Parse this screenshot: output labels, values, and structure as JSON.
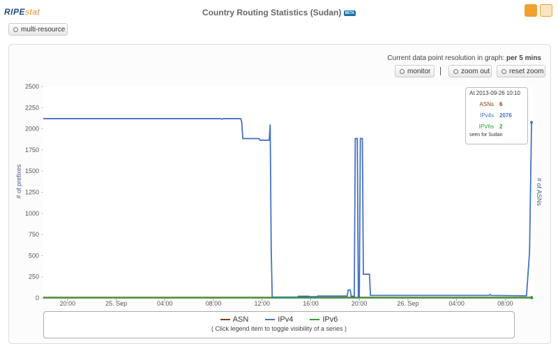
{
  "header": {
    "logo_main": "RIPE",
    "logo_sub": "stat",
    "title": "Country Routing Statistics (Sudan)",
    "badge": "BETA"
  },
  "toolbar": {
    "resource_button": "multi-resource",
    "resolution_text": "Current data point resolution in graph:",
    "resolution_value": "per 5 mins",
    "buttons": [
      "monitor",
      "zoom out",
      "reset zoom"
    ]
  },
  "chart_data": {
    "type": "line",
    "y_label": "# of prefixes",
    "y2_label": "# of ASNs",
    "xlim": [
      "2013-09-24 18:00",
      "2013-09-26 10:20"
    ],
    "xticks": [
      {
        "value": "2013-09-24 20:00",
        "label": "20:00"
      },
      {
        "value": "2013-09-25 00:00",
        "label": "25. Sep"
      },
      {
        "value": "2013-09-25 04:00",
        "label": "04:00"
      },
      {
        "value": "2013-09-25 08:00",
        "label": "08:00"
      },
      {
        "value": "2013-09-25 12:00",
        "label": "12:00"
      },
      {
        "value": "2013-09-25 16:00",
        "label": "16:00"
      },
      {
        "value": "2013-09-25 20:00",
        "label": "20:00"
      },
      {
        "value": "2013-09-26 00:00",
        "label": "26. Sep"
      },
      {
        "value": "2013-09-26 04:00",
        "label": "04:00"
      },
      {
        "value": "2013-09-26 08:00",
        "label": "08:00"
      }
    ],
    "ylim": [
      0,
      2500
    ],
    "yticks": [
      0,
      250,
      500,
      750,
      1000,
      1250,
      1500,
      1750,
      2000,
      2250,
      2500
    ],
    "grid": false,
    "series": [
      {
        "name": "ASN",
        "color": "#8b3a0f",
        "x": [
          "2013-09-24 18:00",
          "2013-09-26 10:10"
        ],
        "values": [
          6,
          6
        ]
      },
      {
        "name": "IPv4",
        "color": "#4572c4",
        "x": [
          "2013-09-24 18:00",
          "2013-09-25 08:35",
          "2013-09-25 08:40",
          "2013-09-25 08:50",
          "2013-09-25 10:15",
          "2013-09-25 10:20",
          "2013-09-25 10:25",
          "2013-09-25 11:45",
          "2013-09-25 11:50",
          "2013-09-25 12:35",
          "2013-09-25 12:40",
          "2013-09-25 12:45",
          "2013-09-25 12:50",
          "2013-09-25 14:55",
          "2013-09-25 15:00",
          "2013-09-25 15:50",
          "2013-09-25 15:55",
          "2013-09-25 16:30",
          "2013-09-25 16:35",
          "2013-09-25 19:00",
          "2013-09-25 19:05",
          "2013-09-25 19:15",
          "2013-09-25 19:20",
          "2013-09-25 19:35",
          "2013-09-25 19:40",
          "2013-09-25 19:50",
          "2013-09-25 19:55",
          "2013-09-25 20:00",
          "2013-09-25 20:05",
          "2013-09-25 20:15",
          "2013-09-25 20:20",
          "2013-09-25 20:50",
          "2013-09-25 20:55",
          "2013-09-26 06:40",
          "2013-09-26 06:45",
          "2013-09-26 06:50",
          "2013-09-26 09:45",
          "2013-09-26 09:50",
          "2013-09-26 10:00",
          "2013-09-26 10:10"
        ],
        "values": [
          2120,
          2120,
          2115,
          2120,
          2120,
          2070,
          1885,
          1885,
          1865,
          1865,
          2050,
          590,
          10,
          10,
          20,
          20,
          15,
          15,
          22,
          22,
          95,
          95,
          20,
          20,
          1885,
          1885,
          20,
          20,
          1885,
          1885,
          280,
          280,
          30,
          30,
          40,
          30,
          25,
          200,
          540,
          2076
        ]
      },
      {
        "name": "IPv6",
        "color": "#2ca02c",
        "x": [
          "2013-09-24 18:00",
          "2013-09-26 10:10"
        ],
        "values": [
          2,
          2
        ]
      }
    ],
    "legend_note": "( Click legend item to toggle visibility of a series )",
    "tooltip": {
      "title": "At 2013-09-26 10:10",
      "rows": [
        {
          "label": "ASNs",
          "value": 6
        },
        {
          "label": "IPv4s",
          "value": 2076
        },
        {
          "label": "IPV6s",
          "value": 2
        }
      ],
      "footer": "seen for Sudan"
    }
  }
}
